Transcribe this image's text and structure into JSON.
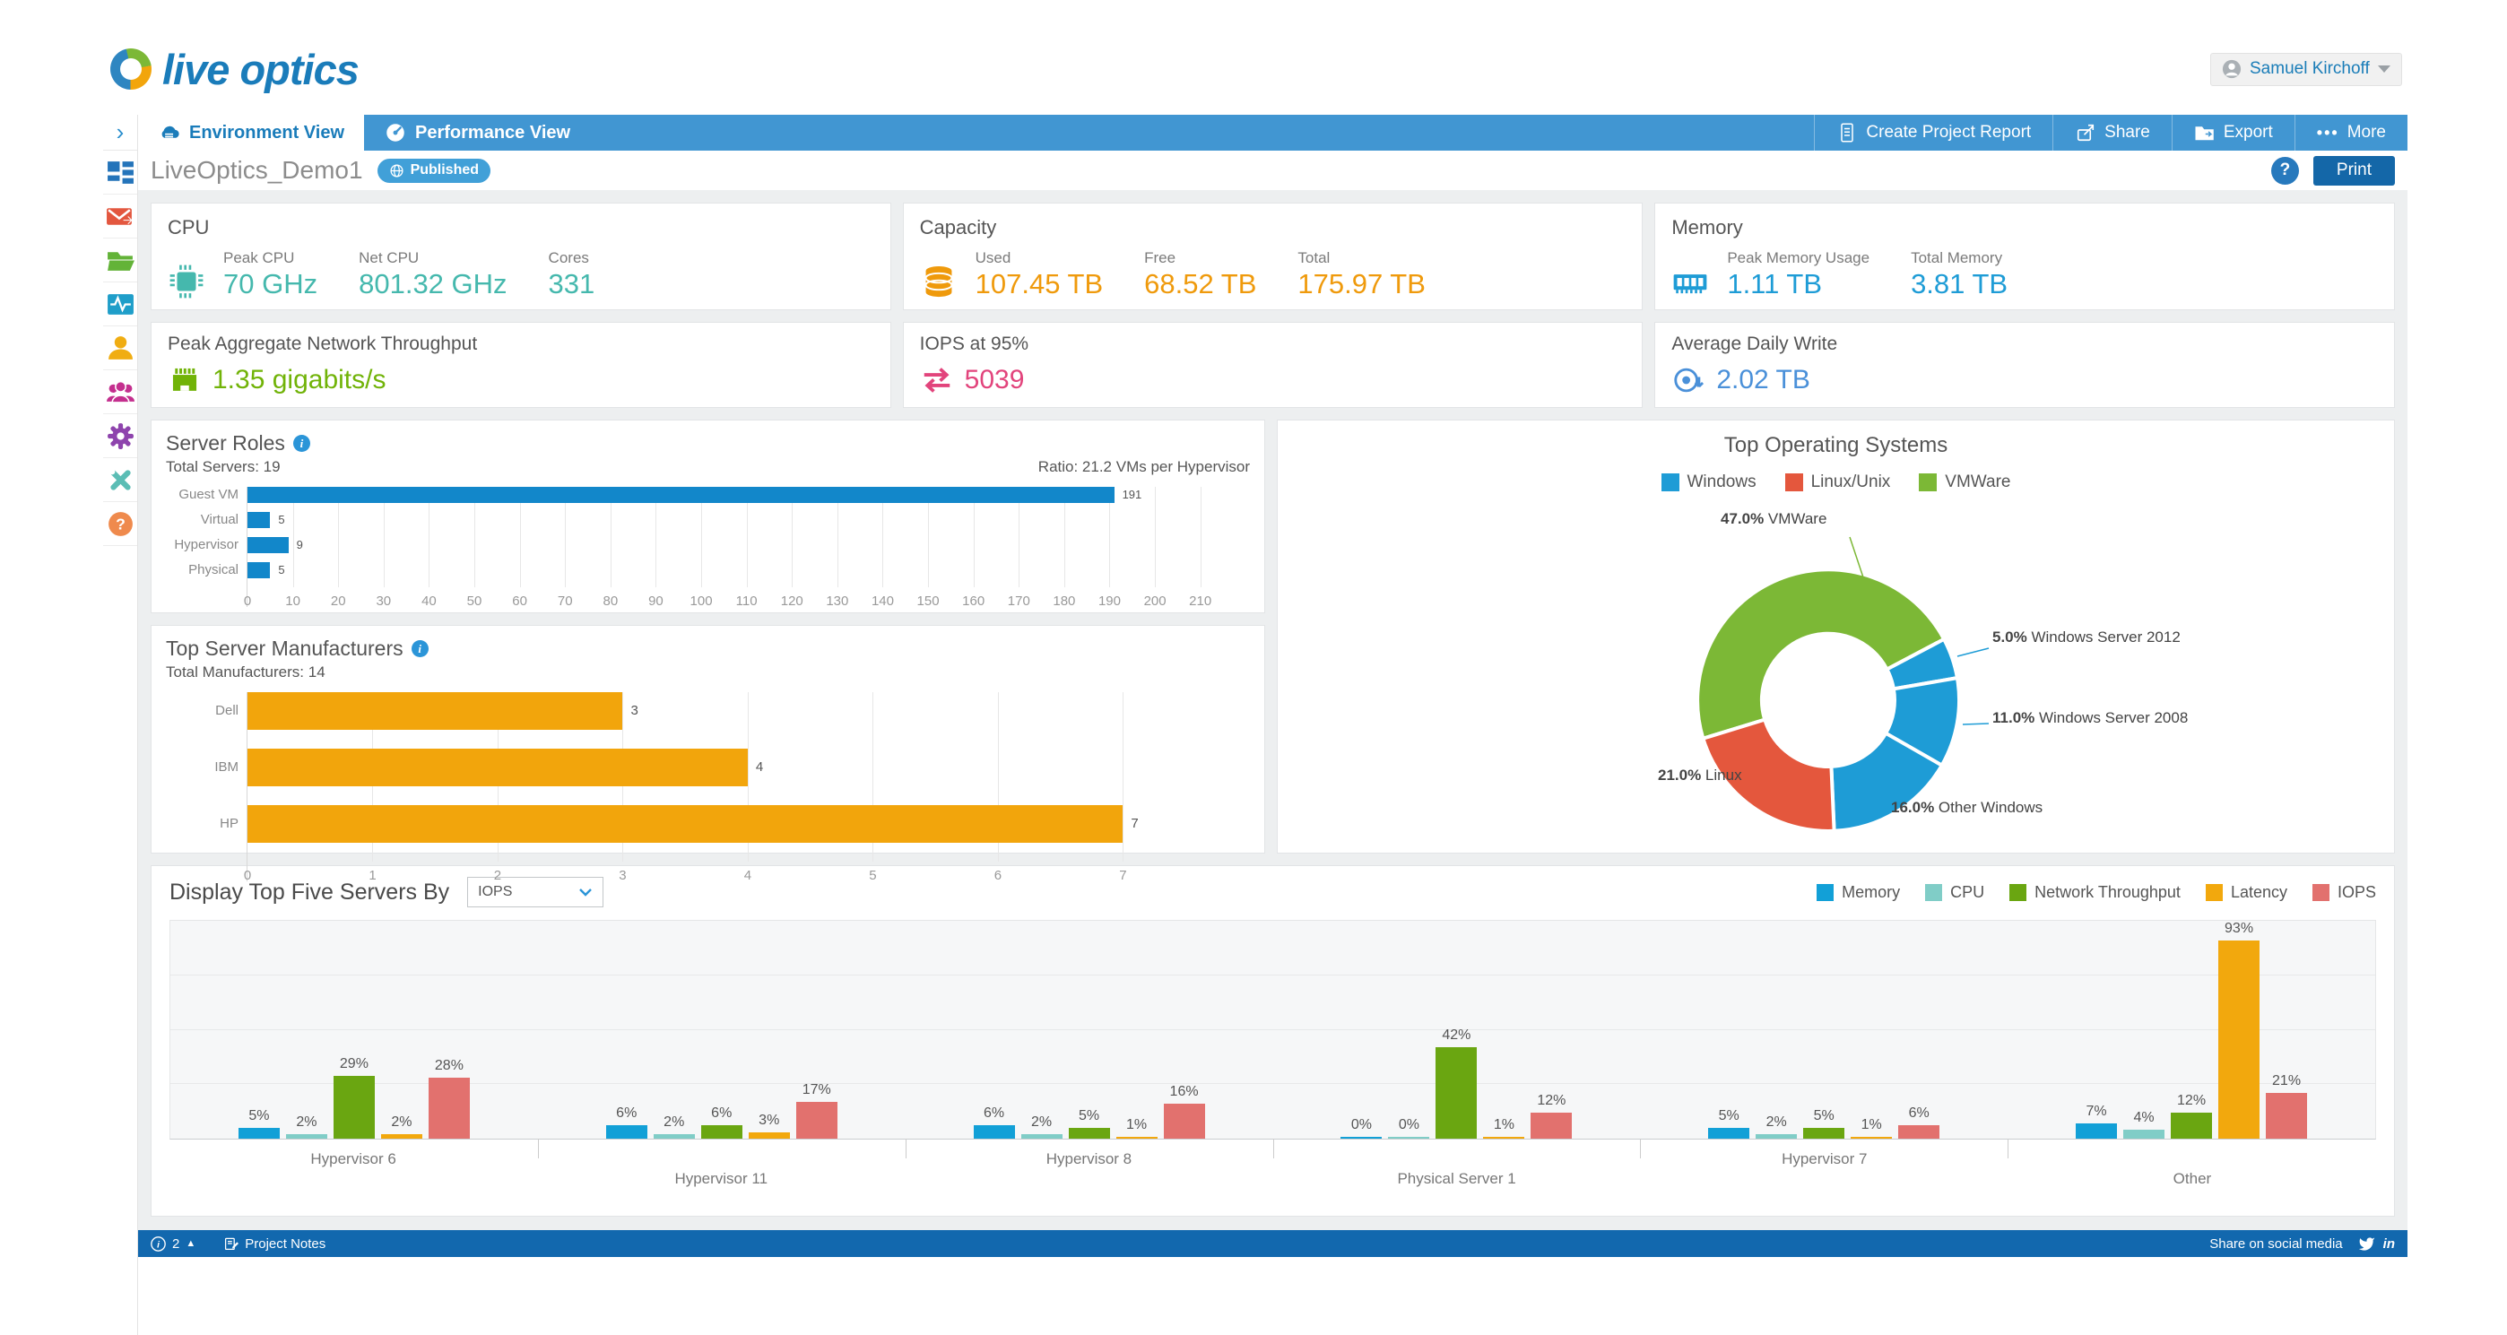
{
  "brand": {
    "logo_text": "live optics"
  },
  "header": {
    "user_name": "Samuel Kirchoff"
  },
  "tabbar": {
    "tabs": [
      "Environment View",
      "Performance View"
    ],
    "actions": [
      "Create Project Report",
      "Share",
      "Export",
      "More"
    ]
  },
  "titlebar": {
    "project_name": "LiveOptics_Demo1",
    "status_badge": "Published",
    "help_label": "?",
    "print_label": "Print"
  },
  "sidebar": {
    "icons": [
      "dashboard",
      "mail",
      "projects-folder",
      "activity-monitor",
      "user",
      "team",
      "settings",
      "tools",
      "help"
    ]
  },
  "stat_cards": {
    "cpu": {
      "title": "CPU",
      "color": "#45b8ad",
      "metrics": [
        {
          "label": "Peak CPU",
          "value": "70 GHz"
        },
        {
          "label": "Net CPU",
          "value": "801.32 GHz"
        },
        {
          "label": "Cores",
          "value": "331"
        }
      ]
    },
    "capacity": {
      "title": "Capacity",
      "color": "#ef9a0c",
      "metrics": [
        {
          "label": "Used",
          "value": "107.45 TB"
        },
        {
          "label": "Free",
          "value": "68.52 TB"
        },
        {
          "label": "Total",
          "value": "175.97 TB"
        }
      ]
    },
    "memory": {
      "title": "Memory",
      "color": "#1e9cd6",
      "metrics": [
        {
          "label": "Peak Memory Usage",
          "value": "1.11 TB"
        },
        {
          "label": "Total Memory",
          "value": "3.81 TB"
        }
      ]
    },
    "network": {
      "title": "Peak Aggregate Network Throughput",
      "color": "#71b308",
      "value": "1.35 gigabits/s"
    },
    "iops": {
      "title": "IOPS at 95%",
      "color": "#e2447c",
      "value": "5039"
    },
    "daily_write": {
      "title": "Average Daily Write",
      "color": "#4a90d9",
      "value": "2.02 TB"
    }
  },
  "chart_data": [
    {
      "id": "server_roles",
      "type": "bar",
      "orientation": "horizontal",
      "title": "Server Roles",
      "subtitle_left": "Total Servers: 19",
      "subtitle_right": "Ratio: 21.2 VMs per Hypervisor",
      "categories": [
        "Guest VM",
        "Virtual",
        "Hypervisor",
        "Physical"
      ],
      "values": [
        191,
        5,
        9,
        5
      ],
      "bar_color": "#1287ca",
      "xlim": [
        0,
        215
      ],
      "tick_step": 10,
      "tick_max": 210,
      "grid": true
    },
    {
      "id": "manufacturers",
      "type": "bar",
      "orientation": "horizontal",
      "title": "Top Server Manufacturers",
      "subtitle_left": "Total Manufacturers: 14",
      "categories": [
        "Dell",
        "IBM",
        "HP"
      ],
      "values": [
        3,
        4,
        7
      ],
      "bar_color": "#f2a50c",
      "xlim": [
        0,
        7.8
      ],
      "tick_step": 1,
      "tick_max": 7,
      "grid": true
    },
    {
      "id": "top_os",
      "type": "pie",
      "title": "Top Operating Systems",
      "legend": [
        {
          "label": "Windows",
          "color": "#1e9cd6"
        },
        {
          "label": "Linux/Unix",
          "color": "#e4573d"
        },
        {
          "label": "VMWare",
          "color": "#7cb836"
        }
      ],
      "start_angle": 253,
      "slices": [
        {
          "label": "VMWare",
          "pct": 47.0,
          "color": "#7cb836"
        },
        {
          "label": "Windows Server 2012",
          "pct": 5.0,
          "color": "#1e9cd6"
        },
        {
          "label": "Windows Server 2008",
          "pct": 11.0,
          "color": "#1e9cd6"
        },
        {
          "label": "Other Windows",
          "pct": 16.0,
          "color": "#1e9cd6"
        },
        {
          "label": "Linux",
          "pct": 21.0,
          "color": "#e4573d"
        }
      ]
    },
    {
      "id": "top_servers",
      "type": "bar",
      "orientation": "vertical",
      "grouped": true,
      "title": "Display Top Five Servers By",
      "selector_value": "IOPS",
      "categories": [
        "Hypervisor 6",
        "Hypervisor 11",
        "Hypervisor 8",
        "Physical Server 1",
        "Hypervisor 7",
        "Other"
      ],
      "series": [
        {
          "name": "Memory",
          "color": "#12a0d7",
          "values": [
            5,
            6,
            6,
            0,
            5,
            7
          ]
        },
        {
          "name": "CPU",
          "color": "#80cdc7",
          "values": [
            2,
            2,
            2,
            0,
            2,
            4
          ]
        },
        {
          "name": "Network Throughput",
          "color": "#6aa611",
          "values": [
            29,
            6,
            5,
            42,
            5,
            12
          ]
        },
        {
          "name": "Latency",
          "color": "#f2a80d",
          "values": [
            2,
            3,
            1,
            1,
            1,
            93
          ]
        },
        {
          "name": "IOPS",
          "color": "#e2716e",
          "values": [
            28,
            17,
            16,
            12,
            6,
            21
          ]
        }
      ],
      "value_suffix": "%",
      "ylim": [
        0,
        100
      ],
      "grid": true,
      "legend_position": "top-right"
    }
  ],
  "footer": {
    "info_count": "2",
    "project_notes": "Project Notes",
    "share_text": "Share on social media"
  }
}
